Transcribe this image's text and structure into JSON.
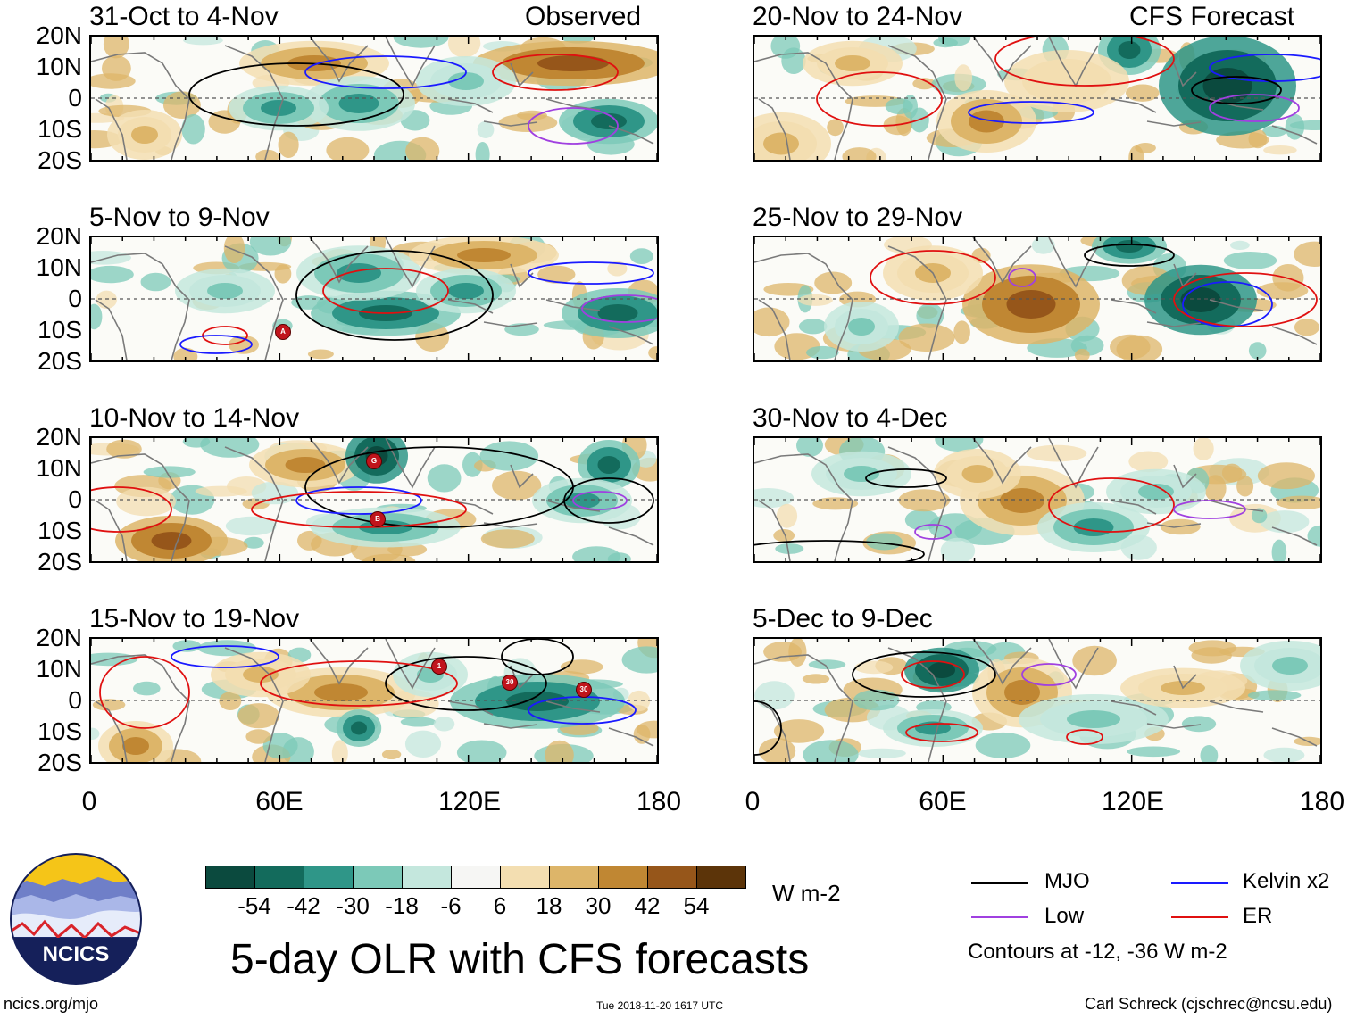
{
  "figure_title": "5-day OLR with CFS forecasts",
  "panels": {
    "p1": {
      "period": "31-Oct to 4-Nov",
      "tag": "Observed"
    },
    "p2": {
      "period": "5-Nov to 9-Nov"
    },
    "p3": {
      "period": "10-Nov to 14-Nov"
    },
    "p4": {
      "period": "15-Nov to 19-Nov"
    },
    "p5": {
      "period": "20-Nov to 24-Nov",
      "tag": "CFS Forecast"
    },
    "p6": {
      "period": "25-Nov to 29-Nov"
    },
    "p7": {
      "period": "30-Nov to 4-Dec"
    },
    "p8": {
      "period": "5-Dec to 9-Dec"
    }
  },
  "lat_labels": [
    "20N",
    "10N",
    "0",
    "10S",
    "20S"
  ],
  "lon_labels": [
    "0",
    "60E",
    "120E",
    "180"
  ],
  "colorbar": {
    "unit": "W m-2",
    "tick_labels": [
      "-54",
      "-42",
      "-30",
      "-18",
      "-6",
      "6",
      "18",
      "30",
      "42",
      "54"
    ],
    "colors": [
      "#0b4a3e",
      "#136b5c",
      "#2f9688",
      "#7cc9b8",
      "#c4e7dd",
      "#f6f6f4",
      "#f3deb1",
      "#ddb569",
      "#c08733",
      "#96561a",
      "#5c3409"
    ]
  },
  "legend": {
    "mjo": "MJO",
    "kelvin": "Kelvin x2",
    "low": "Low",
    "er": "ER",
    "note": "Contours at -12, -36 W m-2",
    "colors": {
      "mjo": "#000000",
      "kelvin": "#1a1aff",
      "low": "#a040e0",
      "er": "#e01010"
    }
  },
  "logo_text": "NCICS",
  "footer": {
    "left": "ncics.org/mjo",
    "center": "Tue 2018-11-20 1617 UTC",
    "right": "Carl Schreck (cjschrec@ncsu.edu)"
  },
  "storms": [
    "A",
    "G",
    "B",
    "1",
    "30",
    "30"
  ]
}
